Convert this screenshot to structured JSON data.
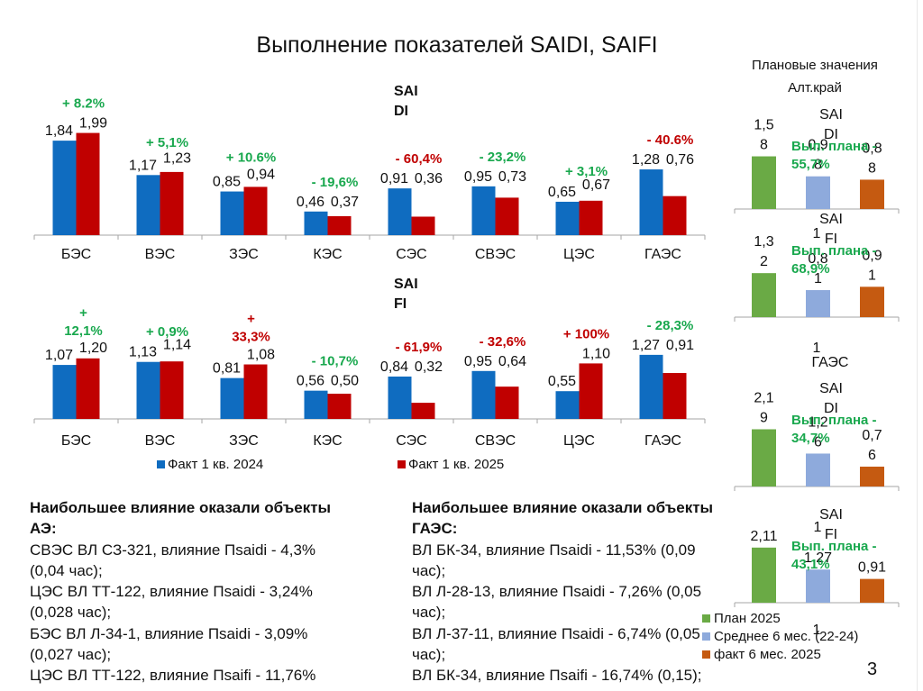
{
  "title": "Выполнение показателей SAIDI, SAIFI",
  "page_number": "3",
  "colors": {
    "fact_2024": "#0f6cc0",
    "fact_2025": "#c00000",
    "plan": "#6aaa45",
    "avg": "#8eaadc",
    "fact6": "#c55a11",
    "green_text": "#19a84e",
    "red_text": "#c00000"
  },
  "chart_data": [
    {
      "type": "bar",
      "title": "SAI DI",
      "title_lines": [
        "SAI",
        "DI"
      ],
      "categories": [
        "БЭС",
        "ВЭС",
        "ЗЭС",
        "КЭС",
        "СЭС",
        "СВЭС",
        "ЦЭС",
        "ГАЭС"
      ],
      "series": [
        {
          "name": "Факт 1 кв. 2024",
          "values": [
            1.84,
            1.17,
            0.85,
            0.46,
            0.91,
            0.95,
            0.65,
            1.28
          ],
          "labels": [
            "1,84",
            "1,17",
            "0,85",
            "0,46",
            "0,91",
            "0,95",
            "0,65",
            "1,28"
          ]
        },
        {
          "name": "Факт 1 кв. 2025",
          "values": [
            1.99,
            1.23,
            0.94,
            0.37,
            0.36,
            0.73,
            0.67,
            0.76
          ],
          "labels": [
            "1,99",
            "1,23",
            "0,94",
            "0,37",
            "0,36",
            "0,73",
            "0,67",
            "0,76"
          ]
        }
      ],
      "annotations": [
        {
          "lines": [
            "+ 8.2%"
          ],
          "color": "green"
        },
        {
          "lines": [
            "+ 5,1%"
          ],
          "color": "green"
        },
        {
          "lines": [
            "+ 10.6%"
          ],
          "color": "green"
        },
        {
          "lines": [
            "- 19,6%"
          ],
          "color": "green"
        },
        {
          "lines": [
            "- 60,4%"
          ],
          "color": "red"
        },
        {
          "lines": [
            "- 23,2%"
          ],
          "color": "green"
        },
        {
          "lines": [
            "+ 3,1%"
          ],
          "color": "green"
        },
        {
          "lines": [
            "- 40.6%"
          ],
          "color": "red"
        }
      ],
      "ylim": [
        0,
        2.2
      ]
    },
    {
      "type": "bar",
      "title": "SAI FI",
      "title_lines": [
        "SAI",
        "FI"
      ],
      "categories": [
        "БЭС",
        "ВЭС",
        "ЗЭС",
        "КЭС",
        "СЭС",
        "СВЭС",
        "ЦЭС",
        "ГАЭС"
      ],
      "series": [
        {
          "name": "Факт 1 кв. 2024",
          "values": [
            1.07,
            1.13,
            0.81,
            0.56,
            0.84,
            0.95,
            0.55,
            1.27
          ],
          "labels": [
            "1,07",
            "1,13",
            "0,81",
            "0,56",
            "0,84",
            "0,95",
            "0,55",
            "1,27"
          ]
        },
        {
          "name": "Факт 1 кв. 2025",
          "values": [
            1.2,
            1.14,
            1.08,
            0.5,
            0.32,
            0.64,
            1.1,
            0.91
          ],
          "labels": [
            "1,20",
            "1,14",
            "1,08",
            "0,50",
            "0,32",
            "0,64",
            "1,10",
            "0,91"
          ]
        }
      ],
      "annotations": [
        {
          "lines": [
            "+",
            "12,1%"
          ],
          "color": "green"
        },
        {
          "lines": [
            "+ 0,9%"
          ],
          "color": "green"
        },
        {
          "lines": [
            "+",
            "33,3%"
          ],
          "color": "red"
        },
        {
          "lines": [
            "- 10,7%"
          ],
          "color": "green"
        },
        {
          "lines": [
            "- 61,9%"
          ],
          "color": "red"
        },
        {
          "lines": [
            "- 32,6%"
          ],
          "color": "red"
        },
        {
          "lines": [
            "+ 100%"
          ],
          "color": "red"
        },
        {
          "lines": [
            "- 28,3%"
          ],
          "color": "green"
        }
      ],
      "ylim": [
        0,
        1.6
      ],
      "legend": {
        "position": "bottom",
        "entries": [
          "Факт 1 кв. 2024",
          "Факт 1 кв. 2025"
        ]
      }
    },
    {
      "type": "bar",
      "group": "Алт.край",
      "title_lines": [
        "SAI",
        "DI"
      ],
      "category": "1",
      "values": [
        1.58,
        0.98,
        0.88
      ],
      "labels": [
        [
          "1,5",
          "8"
        ],
        [
          "0,9",
          "8"
        ],
        [
          "0,8",
          "8"
        ]
      ],
      "annotation": [
        "Вып. плана -",
        "55,7%"
      ]
    },
    {
      "type": "bar",
      "group": "Алт.край",
      "title_lines": [
        "SAI",
        "FI"
      ],
      "category": "1",
      "values": [
        1.32,
        0.81,
        0.91
      ],
      "labels": [
        [
          "1,3",
          "2"
        ],
        [
          "0,8",
          "1"
        ],
        [
          "0,9",
          "1"
        ]
      ],
      "annotation": [
        "Вып. плана -",
        "68,9%"
      ]
    },
    {
      "type": "bar",
      "group": "ГАЭС",
      "title_lines": [
        "SAI",
        "DI"
      ],
      "category": "1",
      "values": [
        2.19,
        1.26,
        0.76
      ],
      "labels": [
        [
          "2,1",
          "9"
        ],
        [
          "1,2",
          "6"
        ],
        [
          "0,7",
          "6"
        ]
      ],
      "annotation": [
        "Вып. плана -",
        "34,7%"
      ]
    },
    {
      "type": "bar",
      "group": "ГАЭС",
      "title_lines": [
        "SAI",
        "FI"
      ],
      "category": "1",
      "values": [
        2.11,
        1.27,
        0.91
      ],
      "labels": [
        [
          "2,11"
        ],
        [
          "1,27"
        ],
        [
          "0,91"
        ]
      ],
      "annotation": [
        "Вып. плана -",
        "43,1%"
      ],
      "legend": {
        "position": "bottom",
        "entries": [
          "План 2025",
          "Среднее 6 мес. (22-24)",
          "факт 6 мес. 2025"
        ]
      }
    }
  ],
  "plan_panel": {
    "title": "Плановые значения",
    "subtitle": "Алт.край",
    "gaes_label": "ГАЭС"
  },
  "notes_left": {
    "heading": [
      "Наибольшее влияние оказали объекты",
      "АЭ:"
    ],
    "lines": [
      "СВЭС ВЛ  СЗ-321, влияние Пsaidi - 4,3%",
      "(0,04 час);",
      "ЦЭС ВЛ  ТТ-122, влияние Пsaidi - 3,24%",
      "(0,028 час);",
      "БЭС  ВЛ Л-34-1, влияние Пsaidi - 3,09%",
      "(0,027 час);",
      "ЦЭС ВЛ ТТ-122, влияние Пsaifi - 11,76%"
    ]
  },
  "notes_right": {
    "heading": [
      "Наибольшее влияние оказали объекты",
      "ГАЭС:"
    ],
    "lines": [
      "ВЛ БК-34, влияние Пsaidi - 11,53% (0,09",
      "час);",
      "ВЛ Л-28-13, влияние Пsaidi - 7,26% (0,05",
      "час);",
      "ВЛ Л-37-11, влияние Пsaidi - 6,74% (0,05",
      "час);",
      "ВЛ БК-34, влияние Пsaifi - 16,74% (0,15);"
    ]
  }
}
